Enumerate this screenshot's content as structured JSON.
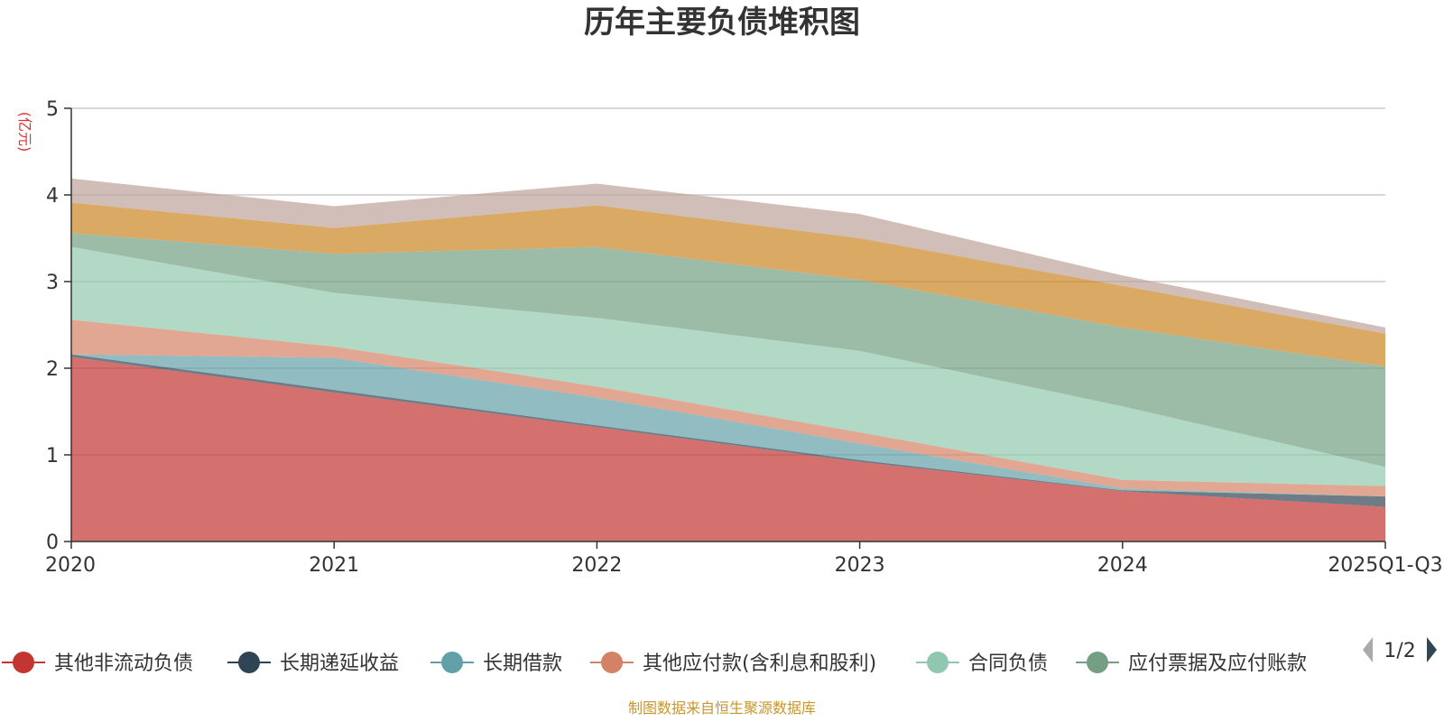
{
  "chart_data": {
    "type": "area",
    "stacked": true,
    "title": "历年主要负债堆积图",
    "unit_label": "(亿元)",
    "x": [
      "2020",
      "2021",
      "2022",
      "2023",
      "2024",
      "2025Q1-Q3"
    ],
    "ylim": [
      0,
      5
    ],
    "yticks": [
      0,
      1,
      2,
      3,
      4,
      5
    ],
    "grid": true,
    "legend_position": "bottom",
    "series": [
      {
        "name": "其他非流动负债",
        "color": "#c23531",
        "values": [
          2.13,
          1.72,
          1.32,
          0.92,
          0.58,
          0.4
        ]
      },
      {
        "name": "长期递延收益",
        "color": "#2f4554",
        "values": [
          0.03,
          0.03,
          0.02,
          0.02,
          0.01,
          0.12
        ]
      },
      {
        "name": "长期借款",
        "color": "#61a0a8",
        "values": [
          0.0,
          0.37,
          0.32,
          0.19,
          0.02,
          0.0
        ]
      },
      {
        "name": "其他应付款(含利息和股利)",
        "color": "#d48265",
        "values": [
          0.4,
          0.13,
          0.13,
          0.13,
          0.1,
          0.12
        ]
      },
      {
        "name": "合同负债",
        "color": "#91c7ae",
        "values": [
          0.84,
          0.62,
          0.79,
          0.94,
          0.85,
          0.22
        ]
      },
      {
        "name": "应付票据及应付账款",
        "color": "#749f83",
        "values": [
          0.16,
          0.45,
          0.82,
          0.82,
          0.91,
          1.16
        ]
      },
      {
        "name": "",
        "color": "#ca8622",
        "values": [
          0.35,
          0.3,
          0.48,
          0.48,
          0.48,
          0.38
        ]
      },
      {
        "name": "",
        "color": "#bda29a",
        "values": [
          0.28,
          0.25,
          0.25,
          0.28,
          0.12,
          0.07
        ]
      }
    ],
    "legend_page": "1/2"
  },
  "footer": {
    "source": "制图数据来自恒生聚源数据库"
  }
}
